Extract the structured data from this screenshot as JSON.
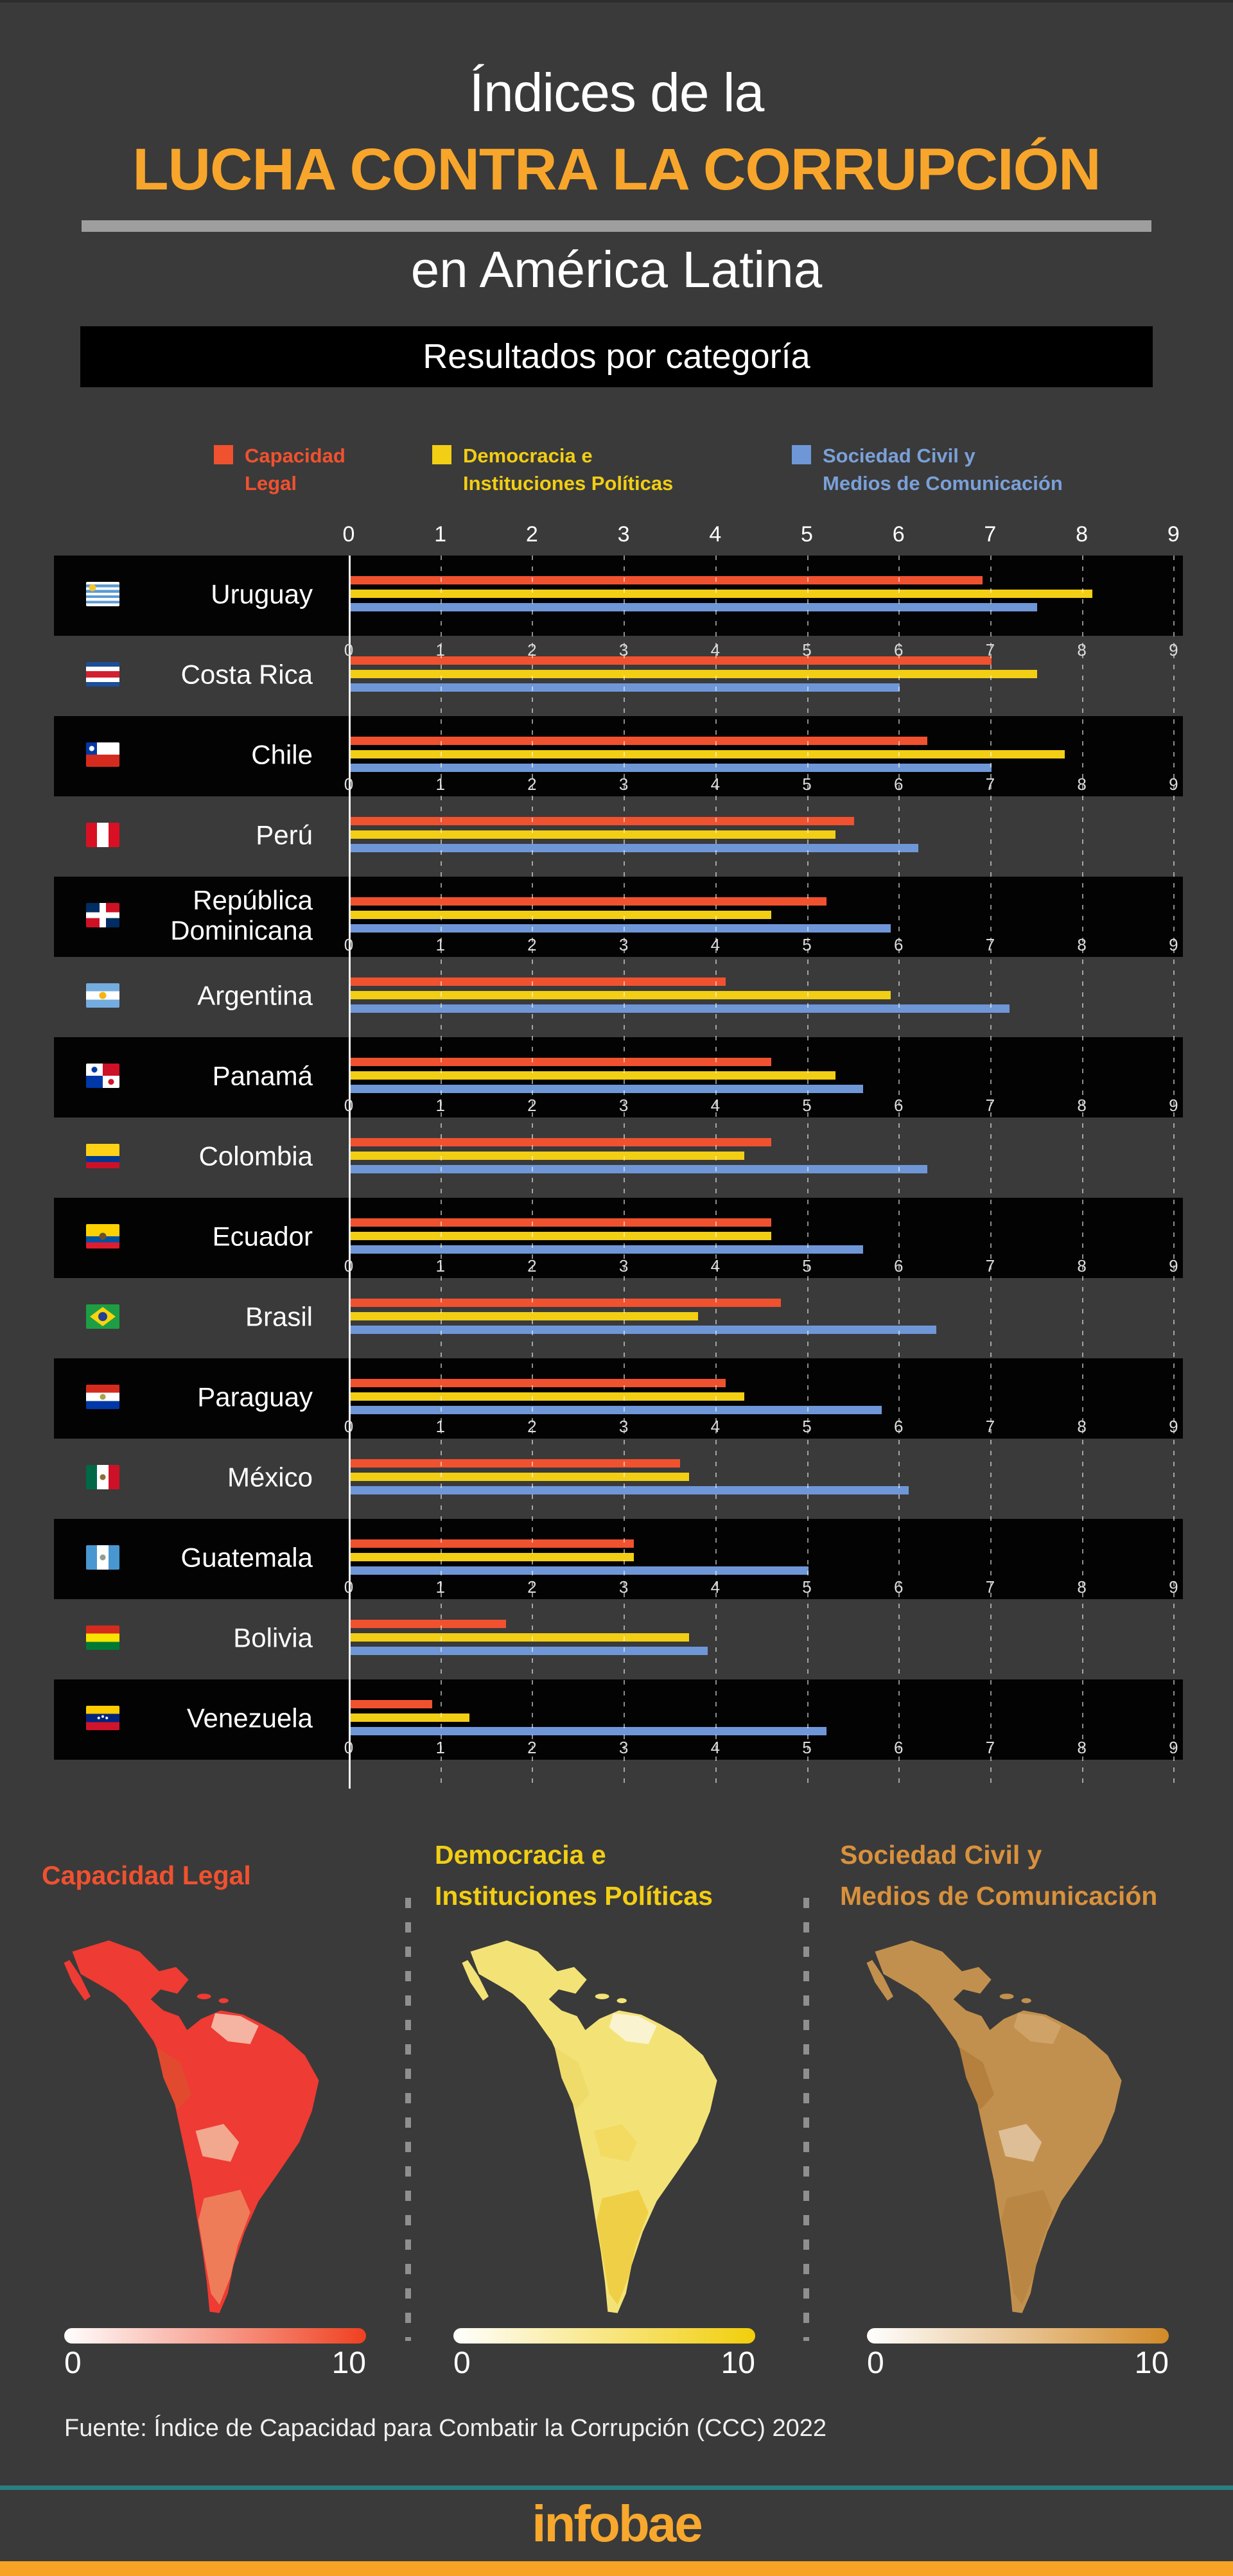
{
  "header": {
    "title_line1": "Índices de la",
    "title_line2": "LUCHA CONTRA LA CORRUPCIÓN",
    "title_line3": "en América Latina",
    "banner": "Resultados por categoría"
  },
  "legend": {
    "items": [
      {
        "label_lines": [
          "Capacidad",
          "Legal"
        ],
        "color": "#F0512F"
      },
      {
        "label_lines": [
          "Democracia e",
          "Instituciones Políticas"
        ],
        "color": "#F2CE14"
      },
      {
        "label_lines": [
          "Sociedad Civil y",
          "Medios de Comunicación"
        ],
        "color": "#7AA0D8"
      }
    ]
  },
  "chart_data": {
    "type": "bar",
    "orientation": "horizontal",
    "title": "Resultados por categoría",
    "xlim": [
      0,
      9
    ],
    "grid": true,
    "tick_labels": [
      "0",
      "1",
      "2",
      "3",
      "4",
      "5",
      "6",
      "7",
      "8",
      "9"
    ],
    "series_names": [
      "Capacidad Legal",
      "Democracia e Instituciones Políticas",
      "Sociedad Civil y Medios de Comunicación"
    ],
    "series_keys": [
      "capacidad-legal",
      "democracia-e-instituciones-politicas",
      "sociedad-civil-y-medios-de-comunicacion"
    ],
    "series_colors": [
      "#F0512F",
      "#F2CE14",
      "#6F97D8"
    ],
    "countries": [
      {
        "name": "Uruguay",
        "label_lines": [
          "Uruguay"
        ],
        "values": [
          6.9,
          8.1,
          7.5
        ]
      },
      {
        "name": "Costa Rica",
        "label_lines": [
          "Costa Rica"
        ],
        "values": [
          7.0,
          7.5,
          6.0
        ]
      },
      {
        "name": "Chile",
        "label_lines": [
          "Chile"
        ],
        "values": [
          6.3,
          7.8,
          7.0
        ]
      },
      {
        "name": "Perú",
        "label_lines": [
          "Perú"
        ],
        "values": [
          5.5,
          5.3,
          6.2
        ]
      },
      {
        "name": "República Dominicana",
        "label_lines": [
          "República",
          "Dominicana"
        ],
        "values": [
          5.2,
          4.6,
          5.9
        ]
      },
      {
        "name": "Argentina",
        "label_lines": [
          "Argentina"
        ],
        "values": [
          4.1,
          5.9,
          7.2
        ]
      },
      {
        "name": "Panamá",
        "label_lines": [
          "Panamá"
        ],
        "values": [
          4.6,
          5.3,
          5.6
        ]
      },
      {
        "name": "Colombia",
        "label_lines": [
          "Colombia"
        ],
        "values": [
          4.6,
          4.3,
          6.3
        ]
      },
      {
        "name": "Ecuador",
        "label_lines": [
          "Ecuador"
        ],
        "values": [
          4.6,
          4.6,
          5.6
        ]
      },
      {
        "name": "Brasil",
        "label_lines": [
          "Brasil"
        ],
        "values": [
          4.7,
          3.8,
          6.4
        ]
      },
      {
        "name": "Paraguay",
        "label_lines": [
          "Paraguay"
        ],
        "values": [
          4.1,
          4.3,
          5.8
        ]
      },
      {
        "name": "México",
        "label_lines": [
          "México"
        ],
        "values": [
          3.6,
          3.7,
          6.1
        ]
      },
      {
        "name": "Guatemala",
        "label_lines": [
          "Guatemala"
        ],
        "values": [
          3.1,
          3.1,
          5.0
        ]
      },
      {
        "name": "Bolivia",
        "label_lines": [
          "Bolivia"
        ],
        "values": [
          1.7,
          3.7,
          3.9
        ]
      },
      {
        "name": "Venezuela",
        "label_lines": [
          "Venezuela"
        ],
        "values": [
          0.9,
          1.3,
          5.2
        ]
      }
    ]
  },
  "maps": {
    "sections": [
      {
        "title_lines": [
          "Capacidad Legal"
        ],
        "color": "#F0512F",
        "scale_min": "0",
        "scale_max": "10"
      },
      {
        "title_lines": [
          "Democracia e",
          "Instituciones Políticas"
        ],
        "color": "#F2CE14",
        "scale_min": "0",
        "scale_max": "10"
      },
      {
        "title_lines": [
          "Sociedad Civil y",
          "Medios de Comunicación"
        ],
        "color": "#D9913C",
        "scale_min": "0",
        "scale_max": "10"
      }
    ]
  },
  "footer": {
    "source": "Fuente: Índice de Capacidad para Combatir la Corrupción (CCC) 2022",
    "brand": "infobae",
    "teal_line_color": "#2A7E81",
    "bottom_bar_color": "#F7A325"
  }
}
